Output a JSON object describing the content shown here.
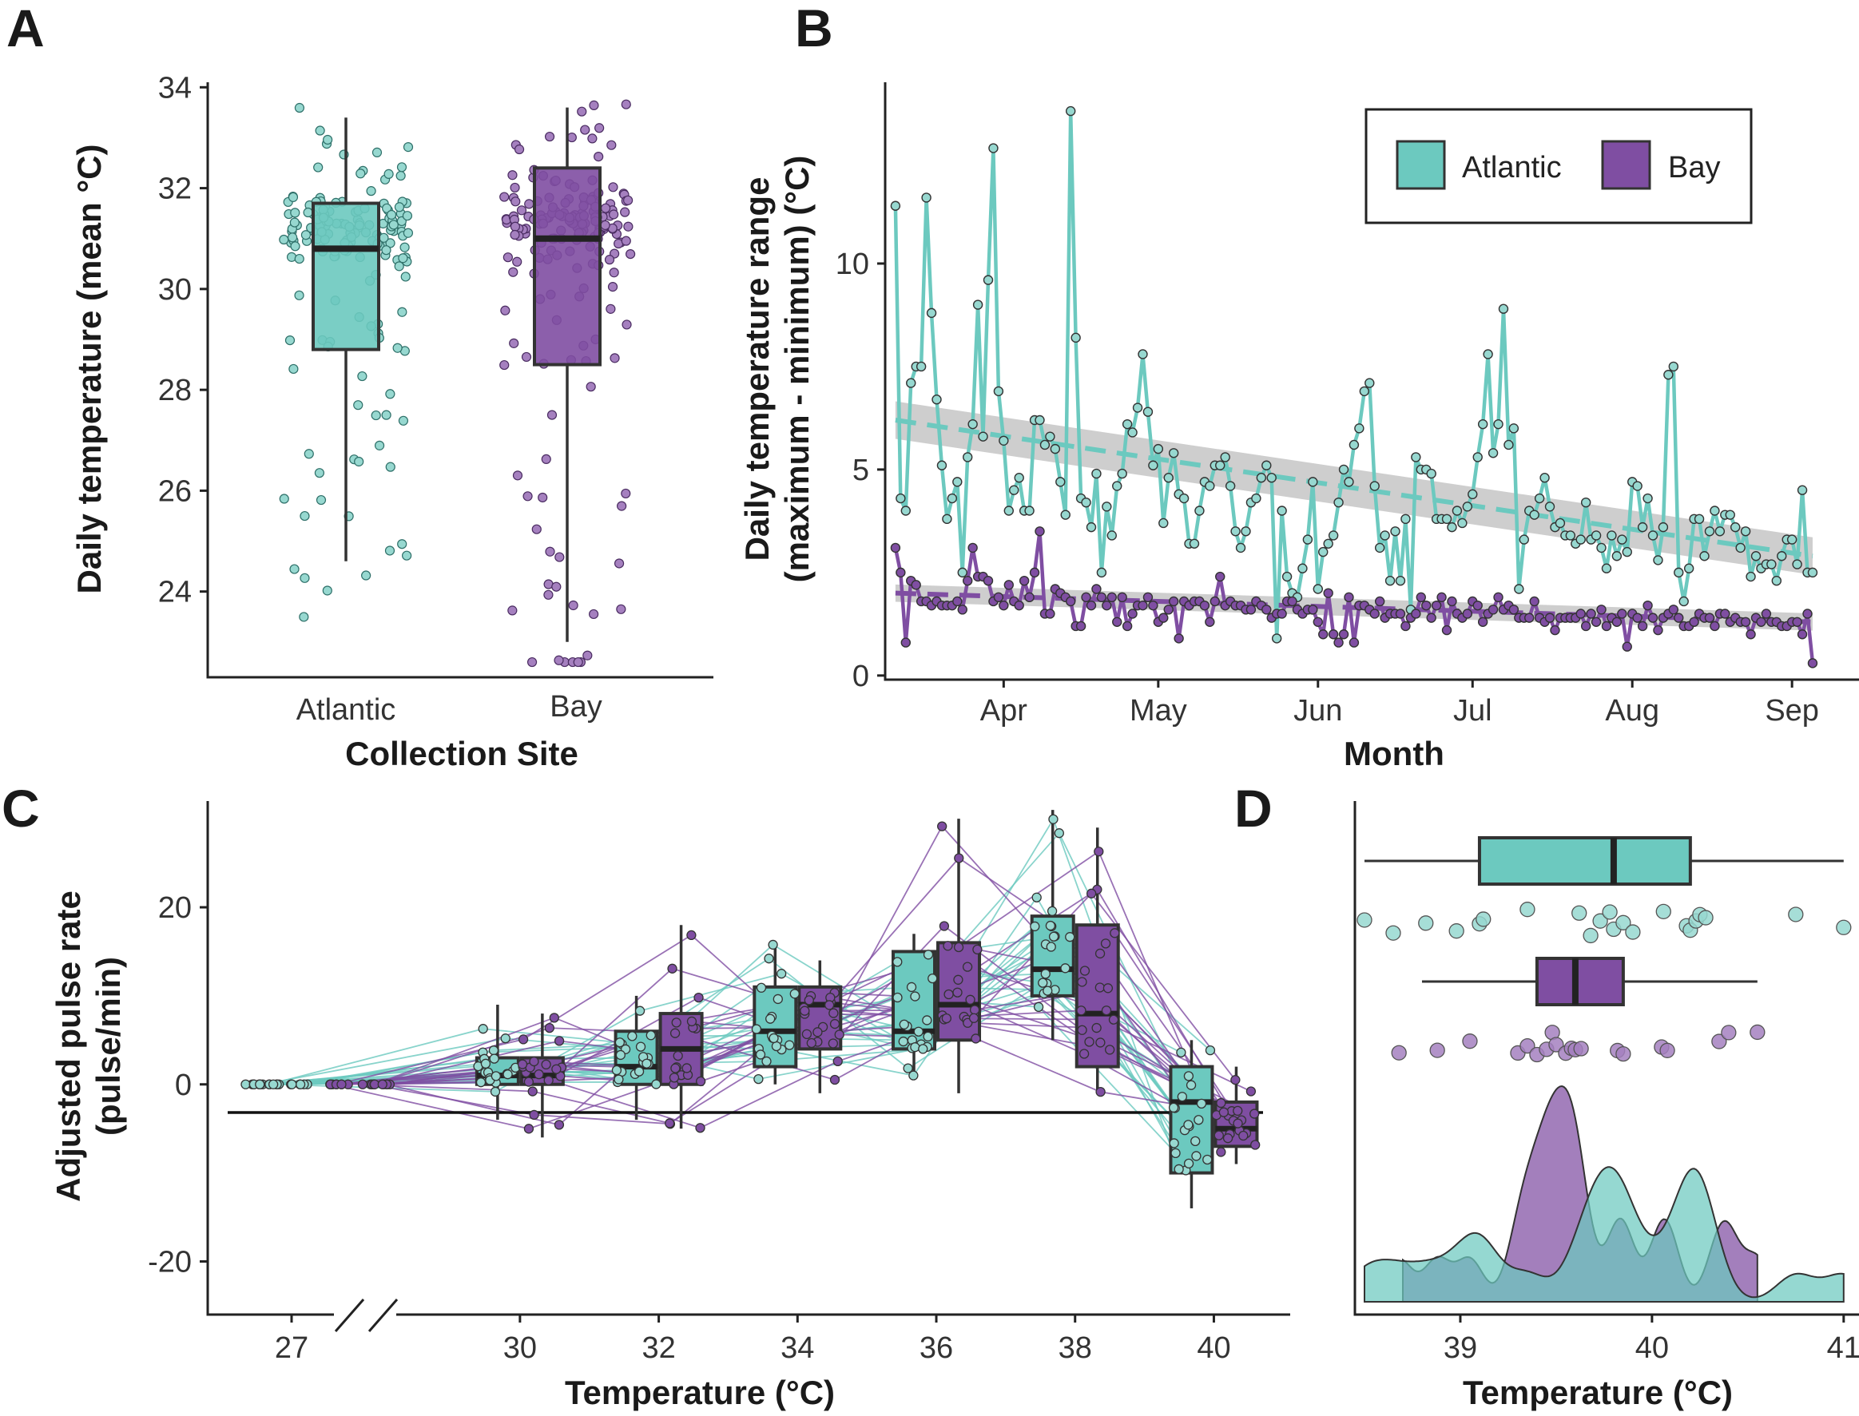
{
  "colors": {
    "atlantic": "#6cc9bf",
    "bay": "#7f4ea2",
    "atlantic_light": "#97d8d0",
    "bay_light": "#a580bf",
    "ribbon": "#c6c6c6",
    "dark": "#333333"
  },
  "panels": {
    "A": "A",
    "B": "B",
    "C": "C",
    "D": "D"
  },
  "chart_data": [
    {
      "id": "A",
      "type": "boxplot",
      "xlabel": "Collection Site",
      "ylabel": "Daily temperature (mean °C)",
      "categories": [
        "Atlantic",
        "Bay"
      ],
      "ylim": [
        22.3,
        34.1
      ],
      "yticks": [
        24,
        26,
        28,
        30,
        32,
        34
      ],
      "boxes": [
        {
          "name": "Atlantic",
          "min": 24.6,
          "q1": 28.8,
          "median": 30.8,
          "q3": 31.7,
          "max": 33.4
        },
        {
          "name": "Bay",
          "min": 23.0,
          "q1": 28.5,
          "median": 31.0,
          "q3": 32.4,
          "max": 33.6
        }
      ],
      "jitter": {
        "Atlantic": {
          "n": 170,
          "seed": 11
        },
        "Bay": {
          "n": 190,
          "seed": 23
        }
      }
    },
    {
      "id": "B",
      "type": "line",
      "xlabel": "Month",
      "ylabel": "Daily temperature range\n(maximum - minimum) (°C)",
      "x_tick_labels": [
        "Apr",
        "May",
        "Jun",
        "Jul",
        "Aug",
        "Sep"
      ],
      "x_tick_days": [
        21,
        51,
        82,
        112,
        143,
        174
      ],
      "xlim": [
        -2,
        187
      ],
      "ylim": [
        -0.1,
        14.4
      ],
      "yticks": [
        0,
        5,
        10
      ],
      "legend": [
        "Atlantic",
        "Bay"
      ],
      "series": [
        {
          "name": "Atlantic",
          "values": [
            11.4,
            4.3,
            4.0,
            7.1,
            7.5,
            7.5,
            11.6,
            8.8,
            6.7,
            5.1,
            3.8,
            4.3,
            4.7,
            2.5,
            5.3,
            6.1,
            9.0,
            5.8,
            9.6,
            12.8,
            6.9,
            5.7,
            4.0,
            4.5,
            4.8,
            4.0,
            4.0,
            6.2,
            6.2,
            5.6,
            5.8,
            5.5,
            4.7,
            3.9,
            13.7,
            8.2,
            4.3,
            4.2,
            3.6,
            4.9,
            2.5,
            4.1,
            3.4,
            4.6,
            4.9,
            6.1,
            5.9,
            6.5,
            7.8,
            6.4,
            5.1,
            5.5,
            3.7,
            4.8,
            5.4,
            4.4,
            4.3,
            3.2,
            3.2,
            4.0,
            4.7,
            4.6,
            5.1,
            5.1,
            5.3,
            4.6,
            3.5,
            3.1,
            3.5,
            4.2,
            4.3,
            4.8,
            5.1,
            4.8,
            0.9,
            4.0,
            2.4,
            2.0,
            1.9,
            2.6,
            3.3,
            4.7,
            2.1,
            3.0,
            3.2,
            3.4,
            4.2,
            5.0,
            4.7,
            5.6,
            6.0,
            6.9,
            7.1,
            4.6,
            3.1,
            3.4,
            2.3,
            3.5,
            2.3,
            3.8,
            1.6,
            5.3,
            5.0,
            5.0,
            4.9,
            3.8,
            3.8,
            3.8,
            3.6,
            4.0,
            3.7,
            4.1,
            4.4,
            5.3,
            6.1,
            7.8,
            5.4,
            6.1,
            8.9,
            5.6,
            6.0,
            2.1,
            3.3,
            4.0,
            3.9,
            4.3,
            4.8,
            4.1,
            3.6,
            3.7,
            3.4,
            3.4,
            3.2,
            3.3,
            4.2,
            3.3,
            3.4,
            3.1,
            2.6,
            3.4,
            2.9,
            3.3,
            3.0,
            4.7,
            4.6,
            3.6,
            4.3,
            3.4,
            2.8,
            3.6,
            7.3,
            7.5,
            2.5,
            1.8,
            2.6,
            3.8,
            3.8,
            2.9,
            3.5,
            4.0,
            3.5,
            3.9,
            3.9,
            3.6,
            3.1,
            3.5,
            2.4,
            2.9,
            2.6,
            2.7,
            2.7,
            2.3,
            2.9,
            3.3,
            3.3,
            2.7,
            4.5,
            2.5,
            2.5
          ]
        },
        {
          "name": "Bay",
          "values": [
            3.1,
            2.5,
            0.8,
            2.3,
            2.2,
            1.8,
            1.8,
            1.7,
            1.8,
            1.7,
            1.7,
            1.7,
            1.8,
            1.6,
            2.3,
            3.1,
            2.4,
            2.4,
            2.3,
            1.8,
            1.9,
            1.7,
            2.2,
            1.8,
            1.7,
            2.3,
            1.9,
            2.5,
            3.5,
            1.5,
            1.5,
            2.1,
            2.0,
            1.9,
            1.8,
            1.2,
            1.2,
            1.9,
            1.7,
            2.1,
            1.9,
            1.7,
            1.9,
            1.3,
            1.9,
            1.2,
            1.5,
            1.7,
            1.7,
            1.9,
            1.7,
            1.3,
            1.4,
            1.6,
            1.8,
            0.9,
            1.8,
            1.7,
            1.8,
            1.8,
            1.7,
            1.3,
            1.8,
            2.4,
            1.7,
            1.8,
            1.7,
            1.7,
            1.6,
            1.6,
            1.8,
            1.7,
            1.6,
            1.4,
            1.5,
            1.5,
            1.8,
            1.8,
            1.6,
            1.5,
            1.6,
            1.6,
            1.3,
            1.0,
            2.0,
            1.0,
            0.8,
            1.0,
            1.9,
            0.8,
            1.7,
            1.7,
            1.6,
            1.5,
            1.8,
            1.4,
            1.5,
            1.5,
            1.5,
            1.2,
            1.4,
            1.5,
            1.9,
            1.7,
            1.4,
            1.7,
            1.9,
            1.1,
            1.8,
            1.5,
            1.4,
            1.5,
            1.8,
            1.7,
            1.3,
            1.5,
            1.6,
            1.9,
            1.6,
            1.7,
            1.6,
            1.4,
            1.4,
            1.4,
            1.8,
            1.4,
            1.3,
            1.4,
            1.1,
            1.4,
            1.4,
            1.4,
            1.4,
            1.5,
            1.2,
            1.5,
            1.3,
            1.6,
            1.2,
            1.4,
            1.3,
            1.5,
            0.7,
            1.5,
            1.4,
            1.2,
            1.7,
            1.4,
            1.1,
            1.4,
            1.5,
            1.6,
            1.4,
            1.2,
            1.2,
            1.3,
            1.5,
            1.4,
            1.4,
            1.2,
            1.5,
            1.5,
            1.3,
            1.4,
            1.3,
            1.3,
            1.0,
            1.4,
            1.3,
            1.5,
            1.3,
            1.3,
            1.2,
            1.2,
            1.3,
            1.3,
            1.0,
            1.5,
            0.3
          ]
        }
      ],
      "trend": {
        "Atlantic": [
          6.2,
          2.9
        ],
        "Bay": [
          2.0,
          1.3
        ],
        "ribbon_halfwidth": 0.35
      }
    },
    {
      "id": "C",
      "type": "boxplot",
      "xlabel": "Temperature (°C)",
      "ylabel": "Adjusted pulse rate\n(pulse/min)",
      "x_tick_labels": [
        "27",
        "30",
        "32",
        "34",
        "36",
        "38",
        "40"
      ],
      "xlim": [
        25.5,
        41.1
      ],
      "ylim": [
        -26,
        32
      ],
      "yticks": [
        -20,
        0,
        20
      ],
      "groups": [
        {
          "temp": 30,
          "Atlantic": {
            "min": -4,
            "q1": 0,
            "median": 1,
            "q3": 3,
            "max": 9
          },
          "Bay": {
            "min": -6,
            "q1": 0,
            "median": 1,
            "q3": 3,
            "max": 8
          }
        },
        {
          "temp": 32,
          "Atlantic": {
            "min": -4,
            "q1": 0,
            "median": 2,
            "q3": 6,
            "max": 10
          },
          "Bay": {
            "min": -5,
            "q1": 0,
            "median": 4,
            "q3": 8,
            "max": 18
          }
        },
        {
          "temp": 34,
          "Atlantic": {
            "min": 0,
            "q1": 2,
            "median": 6,
            "q3": 11,
            "max": 16
          },
          "Bay": {
            "min": -1,
            "q1": 4,
            "median": 9,
            "q3": 11,
            "max": 14
          }
        },
        {
          "temp": 36,
          "Atlantic": {
            "min": 1,
            "q1": 4,
            "median": 6,
            "q3": 15,
            "max": 17
          },
          "Bay": {
            "min": -1,
            "q1": 5,
            "median": 9,
            "q3": 16,
            "max": 30
          }
        },
        {
          "temp": 38,
          "Atlantic": {
            "min": 5,
            "q1": 10,
            "median": 13,
            "q3": 19,
            "max": 31
          },
          "Bay": {
            "min": -1,
            "q1": 2,
            "median": 8,
            "q3": 18,
            "max": 29
          }
        },
        {
          "temp": 40,
          "Atlantic": {
            "min": -14,
            "q1": -10,
            "median": -2,
            "q3": 2,
            "max": 5
          },
          "Bay": {
            "min": -9,
            "q1": -7,
            "median": -5,
            "q3": -2,
            "max": 2
          }
        }
      ],
      "baseline": {
        "temp": 27,
        "value": 0
      }
    },
    {
      "id": "D",
      "type": "density",
      "xlabel": "Temperature (°C)",
      "x_tick_labels": [
        "39",
        "40",
        "41"
      ],
      "xlim": [
        38.45,
        41.08
      ],
      "boxes": [
        {
          "name": "Atlantic",
          "min": 38.5,
          "q1": 39.1,
          "median": 39.8,
          "q3": 40.2,
          "max": 41.0
        },
        {
          "name": "Bay",
          "min": 38.8,
          "q1": 39.4,
          "median": 39.6,
          "q3": 39.85,
          "max": 40.55
        }
      ],
      "points": {
        "Atlantic": [
          38.5,
          38.65,
          38.82,
          38.98,
          39.1,
          39.12,
          39.35,
          39.62,
          39.68,
          39.73,
          39.78,
          39.8,
          39.85,
          39.9,
          40.06,
          40.18,
          40.2,
          40.23,
          40.25,
          40.28,
          40.75,
          41.0
        ],
        "Bay": [
          38.68,
          38.88,
          39.05,
          39.3,
          39.35,
          39.4,
          39.45,
          39.48,
          39.5,
          39.55,
          39.58,
          39.6,
          39.63,
          39.82,
          39.85,
          40.05,
          40.08,
          40.35,
          40.4,
          40.55
        ]
      }
    }
  ]
}
